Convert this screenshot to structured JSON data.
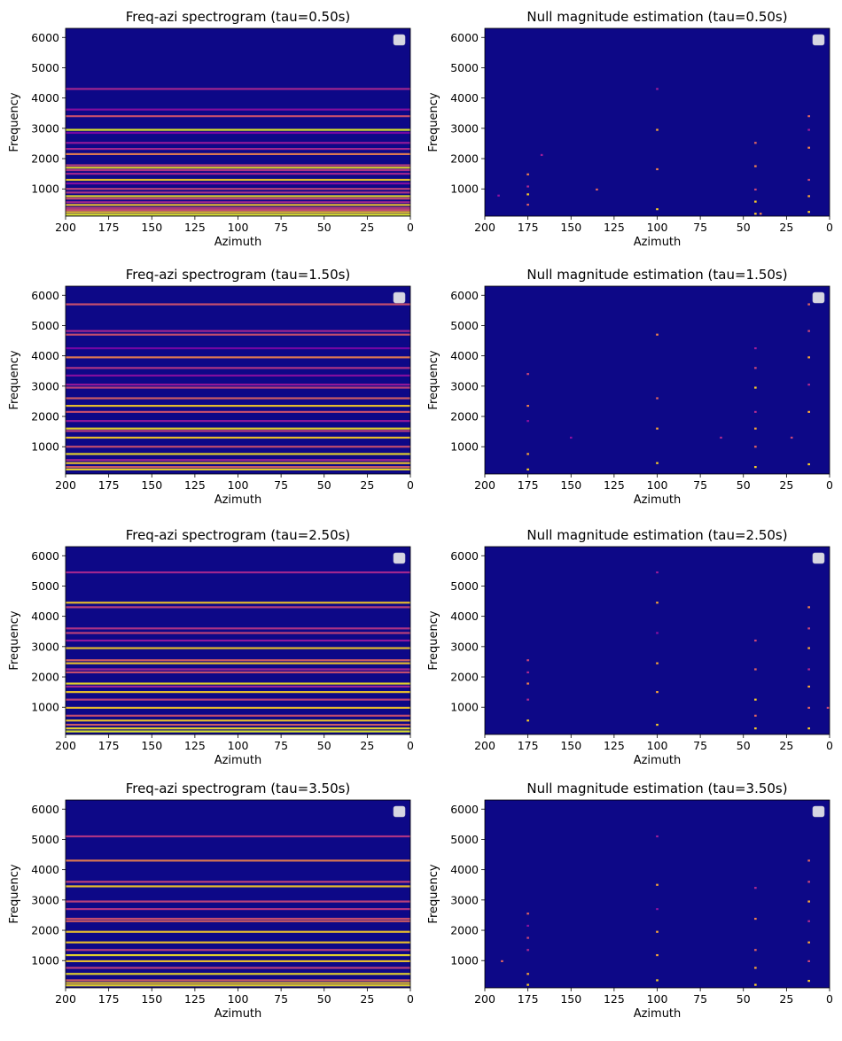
{
  "figure": {
    "background": "#ffffff",
    "colormap": [
      "#0d0887",
      "#46039f",
      "#7201a8",
      "#9c179e",
      "#bd3786",
      "#d8576b",
      "#ed7953",
      "#fb9f3a",
      "#fdca26",
      "#f0f921"
    ]
  },
  "chart_data": [
    {
      "type": "heatmap",
      "title": "Freq-azi spectrogram (tau=0.50s)",
      "xlabel": "Azimuth",
      "ylabel": "Frequency",
      "xlim": [
        200,
        0
      ],
      "ylim": [
        100,
        6300
      ],
      "xticks": [
        200,
        175,
        150,
        125,
        100,
        75,
        50,
        25,
        0
      ],
      "yticks": [
        1000,
        2000,
        3000,
        4000,
        5000,
        6000
      ],
      "legend": {
        "placement": "upper-right",
        "entries": []
      },
      "bands": [
        {
          "f": 150,
          "i": 1.0
        },
        {
          "f": 230,
          "i": 0.9
        },
        {
          "f": 300,
          "i": 0.55
        },
        {
          "f": 370,
          "i": 0.5
        },
        {
          "f": 470,
          "i": 0.9
        },
        {
          "f": 560,
          "i": 0.4
        },
        {
          "f": 680,
          "i": 0.55
        },
        {
          "f": 760,
          "i": 0.95
        },
        {
          "f": 880,
          "i": 0.45
        },
        {
          "f": 1000,
          "i": 0.5
        },
        {
          "f": 1180,
          "i": 0.3
        },
        {
          "f": 1300,
          "i": 0.9
        },
        {
          "f": 1500,
          "i": 0.4
        },
        {
          "f": 1620,
          "i": 0.45
        },
        {
          "f": 1700,
          "i": 0.95
        },
        {
          "f": 1780,
          "i": 0.5
        },
        {
          "f": 2150,
          "i": 0.7
        },
        {
          "f": 2320,
          "i": 0.4
        },
        {
          "f": 2520,
          "i": 0.35
        },
        {
          "f": 2850,
          "i": 0.25
        },
        {
          "f": 2950,
          "i": 1.0
        },
        {
          "f": 3400,
          "i": 0.55
        },
        {
          "f": 3620,
          "i": 0.3
        },
        {
          "f": 4300,
          "i": 0.4
        }
      ],
      "points": []
    },
    {
      "type": "heatmap",
      "title": "Null magnitude estimation (tau=0.50s)",
      "xlabel": "Azimuth",
      "ylabel": "Frequency",
      "xlim": [
        200,
        0
      ],
      "ylim": [
        100,
        6300
      ],
      "xticks": [
        200,
        175,
        150,
        125,
        100,
        75,
        50,
        25,
        0
      ],
      "yticks": [
        1000,
        2000,
        3000,
        4000,
        5000,
        6000
      ],
      "legend": {
        "placement": "upper-right",
        "entries": []
      },
      "bands": [],
      "points": [
        {
          "az": 175,
          "f": 1480,
          "i": 0.7
        },
        {
          "az": 175,
          "f": 820,
          "i": 0.9
        },
        {
          "az": 175,
          "f": 480,
          "i": 0.6
        },
        {
          "az": 175,
          "f": 1080,
          "i": 0.4
        },
        {
          "az": 167,
          "f": 2120,
          "i": 0.35
        },
        {
          "az": 135,
          "f": 980,
          "i": 0.6
        },
        {
          "az": 100,
          "f": 2950,
          "i": 0.8
        },
        {
          "az": 100,
          "f": 1650,
          "i": 0.7
        },
        {
          "az": 100,
          "f": 330,
          "i": 0.9
        },
        {
          "az": 100,
          "f": 4300,
          "i": 0.35
        },
        {
          "az": 43,
          "f": 2520,
          "i": 0.6
        },
        {
          "az": 43,
          "f": 1750,
          "i": 0.7
        },
        {
          "az": 43,
          "f": 980,
          "i": 0.5
        },
        {
          "az": 43,
          "f": 580,
          "i": 0.9
        },
        {
          "az": 43,
          "f": 180,
          "i": 0.9
        },
        {
          "az": 40,
          "f": 180,
          "i": 0.7
        },
        {
          "az": 12,
          "f": 3400,
          "i": 0.6
        },
        {
          "az": 12,
          "f": 2950,
          "i": 0.35
        },
        {
          "az": 12,
          "f": 2360,
          "i": 0.7
        },
        {
          "az": 12,
          "f": 1300,
          "i": 0.5
        },
        {
          "az": 12,
          "f": 760,
          "i": 0.8
        },
        {
          "az": 12,
          "f": 240,
          "i": 0.9
        },
        {
          "az": 192,
          "f": 780,
          "i": 0.3
        }
      ]
    },
    {
      "type": "heatmap",
      "title": "Freq-azi spectrogram (tau=1.50s)",
      "xlabel": "Azimuth",
      "ylabel": "Frequency",
      "xlim": [
        200,
        0
      ],
      "ylim": [
        100,
        6300
      ],
      "xticks": [
        200,
        175,
        150,
        125,
        100,
        75,
        50,
        25,
        0
      ],
      "yticks": [
        1000,
        2000,
        3000,
        4000,
        5000,
        6000
      ],
      "legend": {
        "placement": "upper-right",
        "entries": []
      },
      "bands": [
        {
          "f": 250,
          "i": 0.95
        },
        {
          "f": 330,
          "i": 0.6
        },
        {
          "f": 460,
          "i": 0.9
        },
        {
          "f": 560,
          "i": 0.4
        },
        {
          "f": 760,
          "i": 0.95
        },
        {
          "f": 1000,
          "i": 0.55
        },
        {
          "f": 1300,
          "i": 0.9
        },
        {
          "f": 1520,
          "i": 0.5
        },
        {
          "f": 1600,
          "i": 0.95
        },
        {
          "f": 1850,
          "i": 0.35
        },
        {
          "f": 2150,
          "i": 0.55
        },
        {
          "f": 2350,
          "i": 0.9
        },
        {
          "f": 2600,
          "i": 0.6
        },
        {
          "f": 2950,
          "i": 0.5
        },
        {
          "f": 3050,
          "i": 0.35
        },
        {
          "f": 3350,
          "i": 0.3
        },
        {
          "f": 3600,
          "i": 0.45
        },
        {
          "f": 3950,
          "i": 0.7
        },
        {
          "f": 4250,
          "i": 0.25
        },
        {
          "f": 4700,
          "i": 0.55
        },
        {
          "f": 4820,
          "i": 0.4
        },
        {
          "f": 5700,
          "i": 0.55
        }
      ],
      "points": []
    },
    {
      "type": "heatmap",
      "title": "Null magnitude estimation (tau=1.50s)",
      "xlabel": "Azimuth",
      "ylabel": "Frequency",
      "xlim": [
        200,
        0
      ],
      "ylim": [
        100,
        6300
      ],
      "xticks": [
        200,
        175,
        150,
        125,
        100,
        75,
        50,
        25,
        0
      ],
      "yticks": [
        1000,
        2000,
        3000,
        4000,
        5000,
        6000
      ],
      "legend": {
        "placement": "upper-right",
        "entries": []
      },
      "bands": [],
      "points": [
        {
          "az": 175,
          "f": 3400,
          "i": 0.5
        },
        {
          "az": 175,
          "f": 2350,
          "i": 0.7
        },
        {
          "az": 175,
          "f": 1850,
          "i": 0.3
        },
        {
          "az": 175,
          "f": 760,
          "i": 0.8
        },
        {
          "az": 175,
          "f": 250,
          "i": 0.9
        },
        {
          "az": 150,
          "f": 1300,
          "i": 0.3
        },
        {
          "az": 100,
          "f": 4700,
          "i": 0.7
        },
        {
          "az": 100,
          "f": 2600,
          "i": 0.6
        },
        {
          "az": 100,
          "f": 1600,
          "i": 0.8
        },
        {
          "az": 100,
          "f": 460,
          "i": 0.9
        },
        {
          "az": 63,
          "f": 1300,
          "i": 0.4
        },
        {
          "az": 43,
          "f": 4250,
          "i": 0.35
        },
        {
          "az": 43,
          "f": 3600,
          "i": 0.5
        },
        {
          "az": 43,
          "f": 2950,
          "i": 0.9
        },
        {
          "az": 43,
          "f": 2150,
          "i": 0.4
        },
        {
          "az": 43,
          "f": 1600,
          "i": 0.8
        },
        {
          "az": 43,
          "f": 1000,
          "i": 0.6
        },
        {
          "az": 43,
          "f": 330,
          "i": 0.9
        },
        {
          "az": 22,
          "f": 1300,
          "i": 0.5
        },
        {
          "az": 12,
          "f": 5700,
          "i": 0.6
        },
        {
          "az": 12,
          "f": 4820,
          "i": 0.5
        },
        {
          "az": 12,
          "f": 3950,
          "i": 0.8
        },
        {
          "az": 12,
          "f": 3050,
          "i": 0.4
        },
        {
          "az": 12,
          "f": 2150,
          "i": 0.8
        },
        {
          "az": 12,
          "f": 420,
          "i": 0.9
        }
      ]
    },
    {
      "type": "heatmap",
      "title": "Freq-azi spectrogram (tau=2.50s)",
      "xlabel": "Azimuth",
      "ylabel": "Frequency",
      "xlim": [
        200,
        0
      ],
      "ylim": [
        100,
        6300
      ],
      "xticks": [
        200,
        175,
        150,
        125,
        100,
        75,
        50,
        25,
        0
      ],
      "yticks": [
        1000,
        2000,
        3000,
        4000,
        5000,
        6000
      ],
      "legend": {
        "placement": "upper-right",
        "entries": []
      },
      "bands": [
        {
          "f": 200,
          "i": 1.0
        },
        {
          "f": 300,
          "i": 0.95
        },
        {
          "f": 420,
          "i": 0.6
        },
        {
          "f": 560,
          "i": 0.9
        },
        {
          "f": 720,
          "i": 0.55
        },
        {
          "f": 980,
          "i": 0.9
        },
        {
          "f": 1250,
          "i": 0.5
        },
        {
          "f": 1500,
          "i": 0.9
        },
        {
          "f": 1680,
          "i": 0.4
        },
        {
          "f": 1780,
          "i": 0.95
        },
        {
          "f": 2150,
          "i": 0.55
        },
        {
          "f": 2250,
          "i": 0.4
        },
        {
          "f": 2450,
          "i": 0.9
        },
        {
          "f": 2550,
          "i": 0.6
        },
        {
          "f": 2950,
          "i": 0.9
        },
        {
          "f": 3200,
          "i": 0.35
        },
        {
          "f": 3450,
          "i": 0.5
        },
        {
          "f": 3600,
          "i": 0.45
        },
        {
          "f": 4300,
          "i": 0.5
        },
        {
          "f": 4450,
          "i": 0.9
        },
        {
          "f": 5450,
          "i": 0.4
        }
      ],
      "points": []
    },
    {
      "type": "heatmap",
      "title": "Null magnitude estimation (tau=2.50s)",
      "xlabel": "Azimuth",
      "ylabel": "Frequency",
      "xlim": [
        200,
        0
      ],
      "ylim": [
        100,
        6300
      ],
      "xticks": [
        200,
        175,
        150,
        125,
        100,
        75,
        50,
        25,
        0
      ],
      "yticks": [
        1000,
        2000,
        3000,
        4000,
        5000,
        6000
      ],
      "legend": {
        "placement": "upper-right",
        "entries": []
      },
      "bands": [],
      "points": [
        {
          "az": 175,
          "f": 2550,
          "i": 0.5
        },
        {
          "az": 175,
          "f": 2150,
          "i": 0.4
        },
        {
          "az": 175,
          "f": 1780,
          "i": 0.7
        },
        {
          "az": 175,
          "f": 1250,
          "i": 0.4
        },
        {
          "az": 175,
          "f": 560,
          "i": 0.9
        },
        {
          "az": 100,
          "f": 5450,
          "i": 0.35
        },
        {
          "az": 100,
          "f": 4450,
          "i": 0.8
        },
        {
          "az": 100,
          "f": 3450,
          "i": 0.3
        },
        {
          "az": 100,
          "f": 2450,
          "i": 0.8
        },
        {
          "az": 100,
          "f": 1500,
          "i": 0.8
        },
        {
          "az": 100,
          "f": 420,
          "i": 0.9
        },
        {
          "az": 43,
          "f": 3200,
          "i": 0.5
        },
        {
          "az": 43,
          "f": 2250,
          "i": 0.6
        },
        {
          "az": 43,
          "f": 1250,
          "i": 0.9
        },
        {
          "az": 43,
          "f": 720,
          "i": 0.6
        },
        {
          "az": 43,
          "f": 300,
          "i": 0.9
        },
        {
          "az": 12,
          "f": 4300,
          "i": 0.7
        },
        {
          "az": 12,
          "f": 3600,
          "i": 0.5
        },
        {
          "az": 12,
          "f": 2950,
          "i": 0.8
        },
        {
          "az": 12,
          "f": 2250,
          "i": 0.4
        },
        {
          "az": 12,
          "f": 1680,
          "i": 0.8
        },
        {
          "az": 12,
          "f": 980,
          "i": 0.6
        },
        {
          "az": 12,
          "f": 300,
          "i": 0.9
        },
        {
          "az": 1,
          "f": 980,
          "i": 0.5
        }
      ]
    },
    {
      "type": "heatmap",
      "title": "Freq-azi spectrogram (tau=3.50s)",
      "xlabel": "Azimuth",
      "ylabel": "Frequency",
      "xlim": [
        200,
        0
      ],
      "ylim": [
        100,
        6300
      ],
      "xticks": [
        200,
        175,
        150,
        125,
        100,
        75,
        50,
        25,
        0
      ],
      "yticks": [
        1000,
        2000,
        3000,
        4000,
        5000,
        6000
      ],
      "legend": {
        "placement": "upper-right",
        "entries": []
      },
      "bands": [
        {
          "f": 180,
          "i": 0.95
        },
        {
          "f": 260,
          "i": 0.9
        },
        {
          "f": 350,
          "i": 0.6
        },
        {
          "f": 560,
          "i": 0.95
        },
        {
          "f": 760,
          "i": 0.5
        },
        {
          "f": 980,
          "i": 0.9
        },
        {
          "f": 1180,
          "i": 0.95
        },
        {
          "f": 1350,
          "i": 0.5
        },
        {
          "f": 1600,
          "i": 0.9
        },
        {
          "f": 1950,
          "i": 0.9
        },
        {
          "f": 2300,
          "i": 0.6
        },
        {
          "f": 2380,
          "i": 0.55
        },
        {
          "f": 2700,
          "i": 0.45
        },
        {
          "f": 2950,
          "i": 0.5
        },
        {
          "f": 3450,
          "i": 0.9
        },
        {
          "f": 3600,
          "i": 0.5
        },
        {
          "f": 4300,
          "i": 0.7
        },
        {
          "f": 5100,
          "i": 0.45
        }
      ],
      "points": []
    },
    {
      "type": "heatmap",
      "title": "Null magnitude estimation (tau=3.50s)",
      "xlabel": "Azimuth",
      "ylabel": "Frequency",
      "xlim": [
        200,
        0
      ],
      "ylim": [
        100,
        6300
      ],
      "xticks": [
        200,
        175,
        150,
        125,
        100,
        75,
        50,
        25,
        0
      ],
      "yticks": [
        1000,
        2000,
        3000,
        4000,
        5000,
        6000
      ],
      "legend": {
        "placement": "upper-right",
        "entries": []
      },
      "bands": [],
      "points": [
        {
          "az": 190,
          "f": 980,
          "i": 0.6
        },
        {
          "az": 175,
          "f": 2550,
          "i": 0.6
        },
        {
          "az": 175,
          "f": 2150,
          "i": 0.3
        },
        {
          "az": 175,
          "f": 1750,
          "i": 0.5
        },
        {
          "az": 175,
          "f": 1350,
          "i": 0.4
        },
        {
          "az": 175,
          "f": 560,
          "i": 0.8
        },
        {
          "az": 175,
          "f": 200,
          "i": 0.9
        },
        {
          "az": 100,
          "f": 5100,
          "i": 0.35
        },
        {
          "az": 100,
          "f": 3500,
          "i": 0.8
        },
        {
          "az": 100,
          "f": 2700,
          "i": 0.3
        },
        {
          "az": 100,
          "f": 1950,
          "i": 0.8
        },
        {
          "az": 100,
          "f": 1180,
          "i": 0.8
        },
        {
          "az": 100,
          "f": 350,
          "i": 0.9
        },
        {
          "az": 43,
          "f": 3400,
          "i": 0.4
        },
        {
          "az": 43,
          "f": 2380,
          "i": 0.7
        },
        {
          "az": 43,
          "f": 1350,
          "i": 0.6
        },
        {
          "az": 43,
          "f": 760,
          "i": 0.8
        },
        {
          "az": 43,
          "f": 200,
          "i": 0.9
        },
        {
          "az": 12,
          "f": 4300,
          "i": 0.6
        },
        {
          "az": 12,
          "f": 3600,
          "i": 0.5
        },
        {
          "az": 12,
          "f": 2950,
          "i": 0.8
        },
        {
          "az": 12,
          "f": 2300,
          "i": 0.4
        },
        {
          "az": 12,
          "f": 1600,
          "i": 0.8
        },
        {
          "az": 12,
          "f": 980,
          "i": 0.5
        },
        {
          "az": 12,
          "f": 330,
          "i": 0.9
        }
      ]
    }
  ]
}
